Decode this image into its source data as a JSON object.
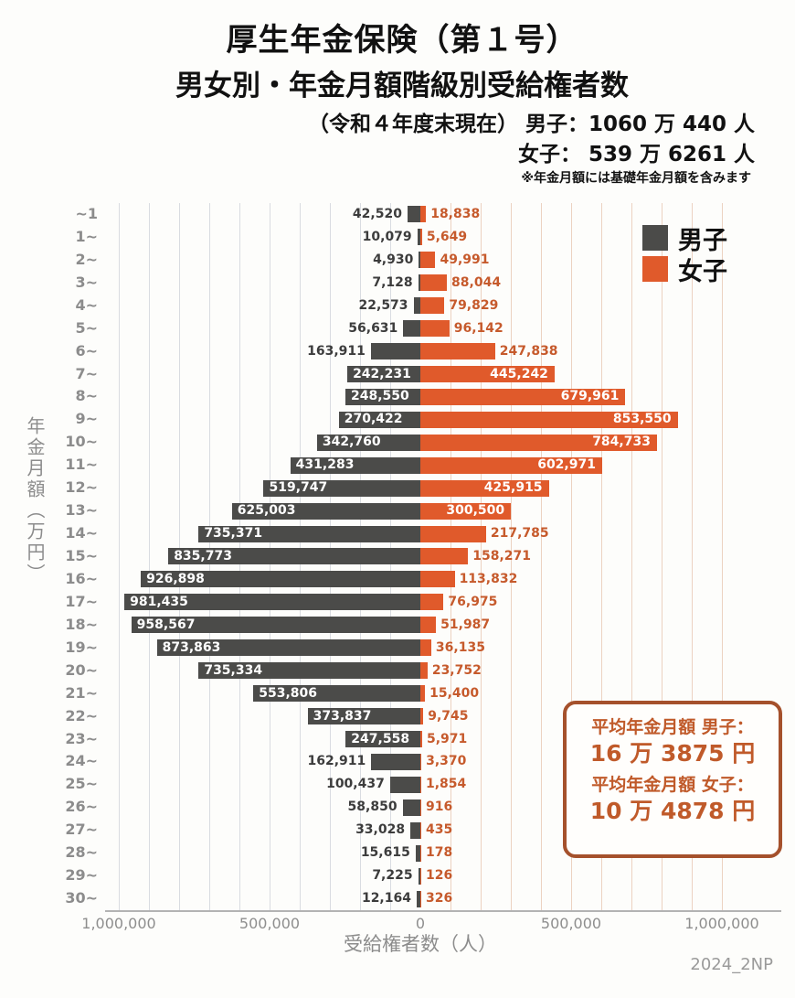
{
  "header": {
    "title": "厚生年金保険（第１号）",
    "subtitle": "男女別・年金月額階級別受給権者数",
    "male_total_line": "（令和４年度末現在） 男子：1060 万 440 人",
    "female_total_line": "女子：  539 万 6261 人",
    "note": "※年金月額には基礎年金月額を含みます"
  },
  "chart_data": {
    "type": "bar",
    "orientation": "horizontal-diverging-pyramid",
    "title": "男女別・年金月額階級別受給権者数",
    "categories": [
      "~1",
      "1~",
      "2~",
      "3~",
      "4~",
      "5~",
      "6~",
      "7~",
      "8~",
      "9~",
      "10~",
      "11~",
      "12~",
      "13~",
      "14~",
      "15~",
      "16~",
      "17~",
      "18~",
      "19~",
      "20~",
      "21~",
      "22~",
      "23~",
      "24~",
      "25~",
      "26~",
      "27~",
      "28~",
      "29~",
      "30~"
    ],
    "series": [
      {
        "name": "男子",
        "color": "#4b4b49",
        "values": [
          42520,
          10079,
          4930,
          7128,
          22573,
          56631,
          163911,
          242231,
          248550,
          270422,
          342760,
          431283,
          519747,
          625003,
          735371,
          835773,
          926898,
          981435,
          958567,
          873863,
          735334,
          553806,
          373837,
          247558,
          162911,
          100437,
          58850,
          33028,
          15615,
          7225,
          12164
        ]
      },
      {
        "name": "女子",
        "color": "#e05a2b",
        "values": [
          18838,
          5649,
          49991,
          88044,
          79829,
          96142,
          247838,
          445242,
          679961,
          853550,
          784733,
          602971,
          425915,
          300500,
          217785,
          158271,
          113832,
          76975,
          51987,
          36135,
          23752,
          15400,
          9745,
          5971,
          3370,
          1854,
          916,
          435,
          178,
          126,
          326
        ]
      }
    ],
    "xlabel": "受給権者数（人）",
    "ylabel": "年金月額（万円）",
    "x_ticks": [
      "1,000,000",
      "500,000",
      "0",
      "500,000",
      "1,000,000"
    ],
    "xlim": [
      -1000000,
      1000000
    ],
    "gridline_interval": 100000,
    "grid": true,
    "legend_position": "top-right"
  },
  "annotation": {
    "male_label": "平均年金月額 男子：",
    "male_value": "16 万 3875 円",
    "female_label": "平均年金月額 女子：",
    "female_value": "10 万 4878 円"
  },
  "footer": {
    "watermark": "2024_2NP"
  }
}
